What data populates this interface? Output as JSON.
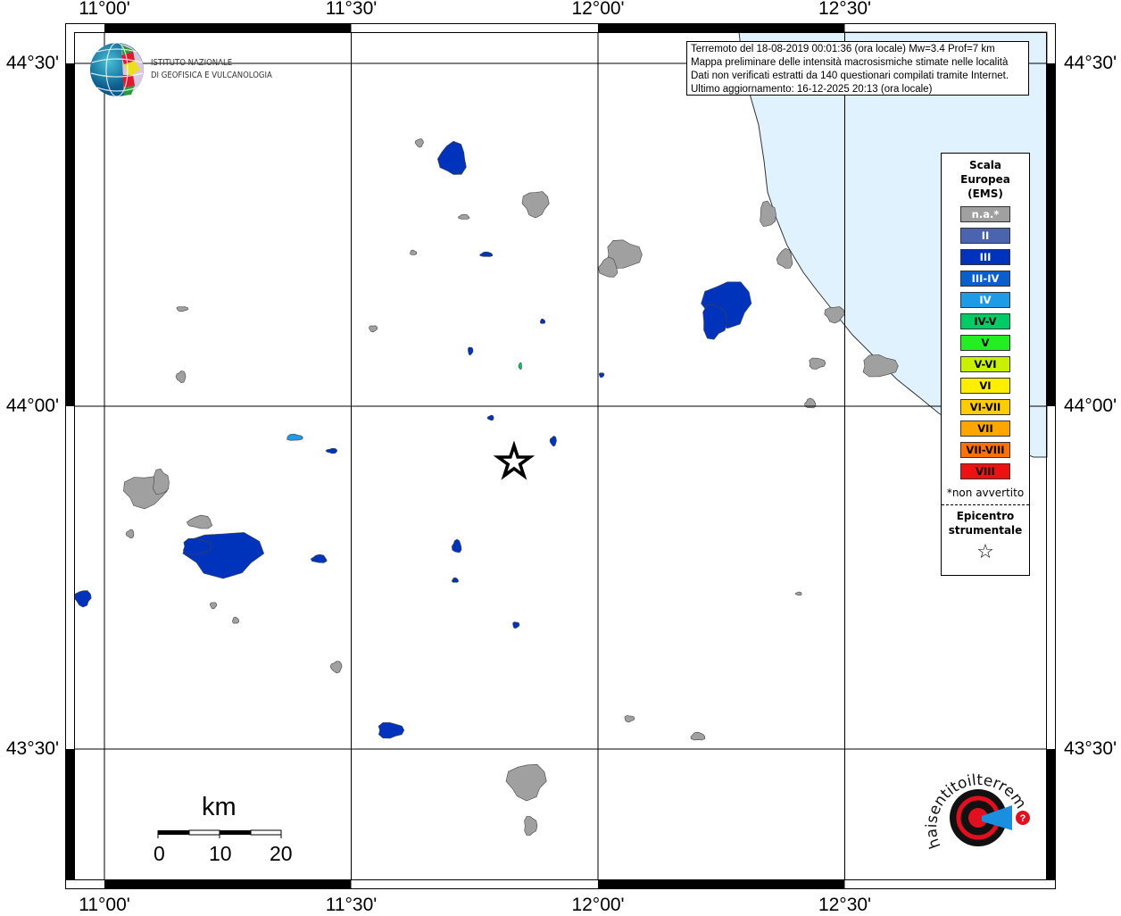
{
  "map": {
    "lon_ticks": [
      "11°00'",
      "11°30'",
      "12°00'",
      "12°30'"
    ],
    "lat_ticks": [
      "44°30'",
      "44°00'",
      "43°30'"
    ],
    "lon_range": [
      10.94,
      12.94
    ],
    "lat_range": [
      43.36,
      44.55
    ],
    "epicenter": {
      "lon": 11.83,
      "lat": 43.92
    },
    "colors": {
      "sea": "#e0f2fe",
      "land": "#ffffff",
      "na": "#a0a0a0",
      "III": "#0033bb",
      "IV": "#1e9be6",
      "IV-V": "#00cc66"
    }
  },
  "info": {
    "lines": [
      "Terremoto del 18-08-2019 00:01:36 (ora locale) Mw=3.4 Prof=7 km",
      "Mappa preliminare delle intensità macrosismiche stimate nelle località",
      "Dati non verificati estratti da 140 questionari compilati tramite Internet.",
      "Ultimo aggiornamento: 16-12-2025 20:13 (ora locale)"
    ]
  },
  "legend": {
    "title": [
      "Scala",
      "Europea",
      "(EMS)"
    ],
    "items": [
      {
        "label": "n.a.*",
        "color": "#a0a0a0",
        "text": "#ffffff"
      },
      {
        "label": "II",
        "color": "#4b64b0",
        "text": "#ffffff"
      },
      {
        "label": "III",
        "color": "#0033bb",
        "text": "#ffffff"
      },
      {
        "label": "III-IV",
        "color": "#0a5fcc",
        "text": "#ffffff"
      },
      {
        "label": "IV",
        "color": "#1e9be6",
        "text": "#ffffff"
      },
      {
        "label": "IV-V",
        "color": "#00cc66",
        "text": "#000000"
      },
      {
        "label": "V",
        "color": "#22ee22",
        "text": "#000000"
      },
      {
        "label": "V-VI",
        "color": "#c8f000",
        "text": "#000000"
      },
      {
        "label": "VI",
        "color": "#ffee00",
        "text": "#000000"
      },
      {
        "label": "VI-VII",
        "color": "#ffcc00",
        "text": "#000000"
      },
      {
        "label": "VII",
        "color": "#ffa500",
        "text": "#000000"
      },
      {
        "label": "VII-VIII",
        "color": "#ff7000",
        "text": "#000000"
      },
      {
        "label": "VIII",
        "color": "#ee1111",
        "text": "#000000"
      }
    ],
    "note": "*non avvertito",
    "epicenter_label": [
      "Epicentro",
      "strumentale"
    ],
    "epicenter_icon": "star-outline-icon"
  },
  "logo_ingv": {
    "line1": "ISTITUTO NAZIONALE",
    "line2": "DI GEOFISICA E VULCANOLOGIA"
  },
  "logo_hsl": {
    "text": "www.haisentitoilterremoto.it"
  },
  "scalebar": {
    "unit": "km",
    "labels": [
      "0",
      "10",
      "20"
    ]
  }
}
